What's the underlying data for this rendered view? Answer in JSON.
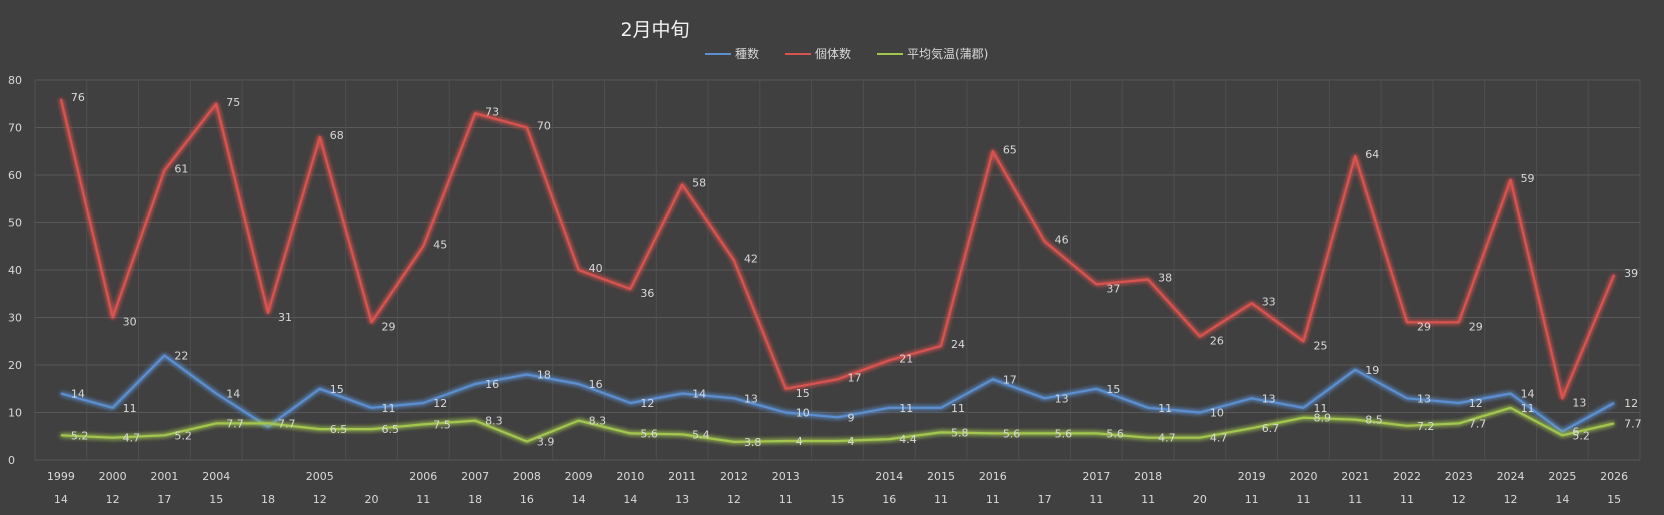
{
  "chart_data": {
    "type": "line",
    "title": "2月中旬",
    "legend_position": "top",
    "grid": true,
    "ylim": [
      0,
      80
    ],
    "yticks": [
      0,
      10,
      20,
      30,
      40,
      50,
      60,
      70,
      80
    ],
    "categories": [
      {
        "year": "1999",
        "temp": "14"
      },
      {
        "year": "2000",
        "temp": "12"
      },
      {
        "year": "2001",
        "temp": "17"
      },
      {
        "year": "2004",
        "temp": "15"
      },
      {
        "year": "",
        "temp": "18"
      },
      {
        "year": "2005",
        "temp": "12"
      },
      {
        "year": "",
        "temp": "20"
      },
      {
        "year": "2006",
        "temp": "11"
      },
      {
        "year": "2007",
        "temp": "18"
      },
      {
        "year": "2008",
        "temp": "16"
      },
      {
        "year": "2009",
        "temp": "14"
      },
      {
        "year": "2010",
        "temp": "14"
      },
      {
        "year": "2011",
        "temp": "13"
      },
      {
        "year": "2012",
        "temp": "12"
      },
      {
        "year": "2013",
        "temp": "11"
      },
      {
        "year": "",
        "temp": "15"
      },
      {
        "year": "2014",
        "temp": "16"
      },
      {
        "year": "2015",
        "temp": "11"
      },
      {
        "year": "2016",
        "temp": "11"
      },
      {
        "year": "",
        "temp": "17"
      },
      {
        "year": "2017",
        "temp": "11"
      },
      {
        "year": "2018",
        "temp": "11"
      },
      {
        "year": "",
        "temp": "20"
      },
      {
        "year": "2019",
        "temp": "11"
      },
      {
        "year": "2020",
        "temp": "11"
      },
      {
        "year": "2021",
        "temp": "11"
      },
      {
        "year": "2022",
        "temp": "11"
      },
      {
        "year": "2023",
        "temp": "12"
      },
      {
        "year": "2024",
        "temp": "12"
      },
      {
        "year": "2025",
        "temp": "14"
      },
      {
        "year": "2026",
        "temp": "15"
      }
    ],
    "series": [
      {
        "name": "種数",
        "color": "#5b8fd0",
        "values": [
          14,
          11,
          22,
          14,
          7,
          15,
          11,
          12,
          16,
          18,
          16,
          12,
          14,
          13,
          10,
          9,
          11,
          11,
          17,
          13,
          15,
          11,
          10,
          13,
          11,
          19,
          13,
          12,
          14,
          6,
          12
        ],
        "labels": [
          "14",
          "11",
          "22",
          "14",
          "",
          "15",
          "11",
          "12",
          "16",
          "18",
          "16",
          "12",
          "14",
          "13",
          "10",
          "9",
          "11",
          "11",
          "17",
          "13",
          "15",
          "11",
          "10",
          "13",
          "11",
          "19",
          "13",
          "12",
          "14",
          "6",
          "12"
        ]
      },
      {
        "name": "個体数",
        "color": "#d9534f",
        "values": [
          76,
          30,
          61,
          75,
          31,
          68,
          29,
          45,
          73,
          70,
          40,
          36,
          58,
          42,
          15,
          17,
          21,
          24,
          65,
          46,
          37,
          38,
          26,
          33,
          25,
          64,
          29,
          29,
          59,
          13,
          39
        ],
        "labels": [
          "76",
          "30",
          "61",
          "75",
          "31",
          "68",
          "29",
          "45",
          "73",
          "70",
          "40",
          "36",
          "58",
          "42",
          "15",
          "17",
          "21",
          "24",
          "65",
          "46",
          "37",
          "38",
          "26",
          "33",
          "25",
          "64",
          "29",
          "29",
          "59",
          "13",
          "39"
        ]
      },
      {
        "name": "平均気温(蒲郡)",
        "color": "#a3c64f",
        "values": [
          5.2,
          4.7,
          5.2,
          7.7,
          7.7,
          6.5,
          6.5,
          7.5,
          8.3,
          3.9,
          8.3,
          5.6,
          5.4,
          3.8,
          4,
          4,
          4.4,
          5.8,
          5.6,
          5.6,
          5.6,
          4.7,
          4.7,
          6.7,
          8.9,
          8.5,
          7.2,
          7.7,
          11,
          5.2,
          7.7
        ],
        "labels": [
          "5.2",
          "4.7",
          "5.2",
          "7.7",
          "7.7",
          "6.5",
          "6.5",
          "7.5",
          "8.3",
          "3.9",
          "8.3",
          "5.6",
          "5.4",
          "3.8",
          "4",
          "4",
          "4.4",
          "5.8",
          "5.6",
          "5.6",
          "5.6",
          "4.7",
          "4.7",
          "6.7",
          "8.9",
          "8.5",
          "7.2",
          "7.7",
          "11",
          "5.2",
          "7.7"
        ]
      }
    ]
  }
}
